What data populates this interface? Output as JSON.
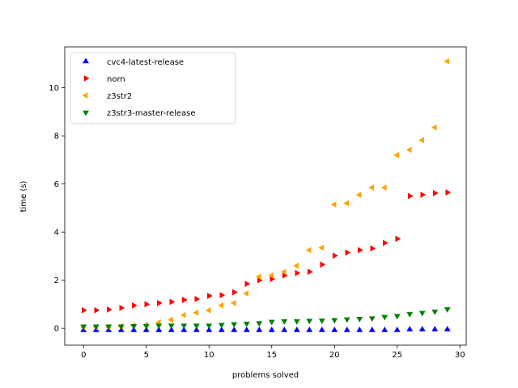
{
  "chart_data": {
    "type": "scatter",
    "title": "",
    "xlabel": "problems solved",
    "ylabel": "time (s)",
    "xlim": [
      -1.5,
      30.5
    ],
    "ylim": [
      -0.7,
      11.7
    ],
    "xticks": [
      0,
      5,
      10,
      15,
      20,
      25,
      30
    ],
    "yticks": [
      0,
      2,
      4,
      6,
      8,
      10
    ],
    "grid": false,
    "legend_position": "top-left",
    "series": [
      {
        "name": "cvc4-latest-release",
        "color": "#0000ff",
        "marker": "triangle-up",
        "x": [
          0,
          1,
          2,
          3,
          4,
          5,
          6,
          7,
          8,
          9,
          10,
          11,
          12,
          13,
          14,
          15,
          16,
          17,
          18,
          19,
          20,
          21,
          22,
          23,
          24,
          25,
          26,
          27,
          28,
          29
        ],
        "y": [
          -0.08,
          -0.08,
          -0.08,
          -0.08,
          -0.08,
          -0.08,
          -0.08,
          -0.08,
          -0.08,
          -0.08,
          -0.08,
          -0.08,
          -0.08,
          -0.08,
          -0.08,
          -0.08,
          -0.08,
          -0.08,
          -0.08,
          -0.08,
          -0.08,
          -0.08,
          -0.08,
          -0.08,
          -0.08,
          -0.08,
          -0.05,
          -0.05,
          -0.05,
          -0.05
        ]
      },
      {
        "name": "norn",
        "color": "#ff0000",
        "marker": "triangle-right",
        "x": [
          0,
          1,
          2,
          3,
          4,
          5,
          6,
          7,
          8,
          9,
          10,
          11,
          12,
          13,
          14,
          15,
          16,
          17,
          18,
          19,
          20,
          21,
          22,
          23,
          24,
          25,
          26,
          27,
          28,
          29
        ],
        "y": [
          0.75,
          0.75,
          0.78,
          0.85,
          0.95,
          1.0,
          1.05,
          1.1,
          1.18,
          1.22,
          1.35,
          1.38,
          1.5,
          1.85,
          2.0,
          2.05,
          2.2,
          2.3,
          2.35,
          2.65,
          3.02,
          3.15,
          3.25,
          3.32,
          3.55,
          3.72,
          5.5,
          5.55,
          5.62,
          5.65
        ]
      },
      {
        "name": "z3str2",
        "color": "#ffa500",
        "marker": "triangle-left",
        "x": [
          0,
          1,
          2,
          3,
          4,
          5,
          6,
          7,
          8,
          9,
          10,
          11,
          12,
          13,
          14,
          15,
          16,
          17,
          18,
          19,
          20,
          21,
          22,
          23,
          24,
          25,
          26,
          27,
          28,
          29
        ],
        "y": [
          0.05,
          0.05,
          0.05,
          0.08,
          0.12,
          0.15,
          0.25,
          0.35,
          0.55,
          0.65,
          0.75,
          0.95,
          1.05,
          1.45,
          2.15,
          2.2,
          2.35,
          2.6,
          3.25,
          3.35,
          5.15,
          5.2,
          5.55,
          5.85,
          5.85,
          7.2,
          7.42,
          7.82,
          8.35,
          11.1
        ]
      },
      {
        "name": "z3str3-master-release",
        "color": "#008000",
        "marker": "triangle-down",
        "x": [
          0,
          1,
          2,
          3,
          4,
          5,
          6,
          7,
          8,
          9,
          10,
          11,
          12,
          13,
          14,
          15,
          16,
          17,
          18,
          19,
          20,
          21,
          22,
          23,
          24,
          25,
          26,
          27,
          28,
          29
        ],
        "y": [
          0.08,
          0.08,
          0.08,
          0.08,
          0.1,
          0.1,
          0.12,
          0.12,
          0.12,
          0.12,
          0.12,
          0.15,
          0.18,
          0.2,
          0.22,
          0.28,
          0.3,
          0.3,
          0.32,
          0.33,
          0.35,
          0.38,
          0.4,
          0.42,
          0.48,
          0.52,
          0.6,
          0.65,
          0.7,
          0.8
        ]
      }
    ]
  }
}
